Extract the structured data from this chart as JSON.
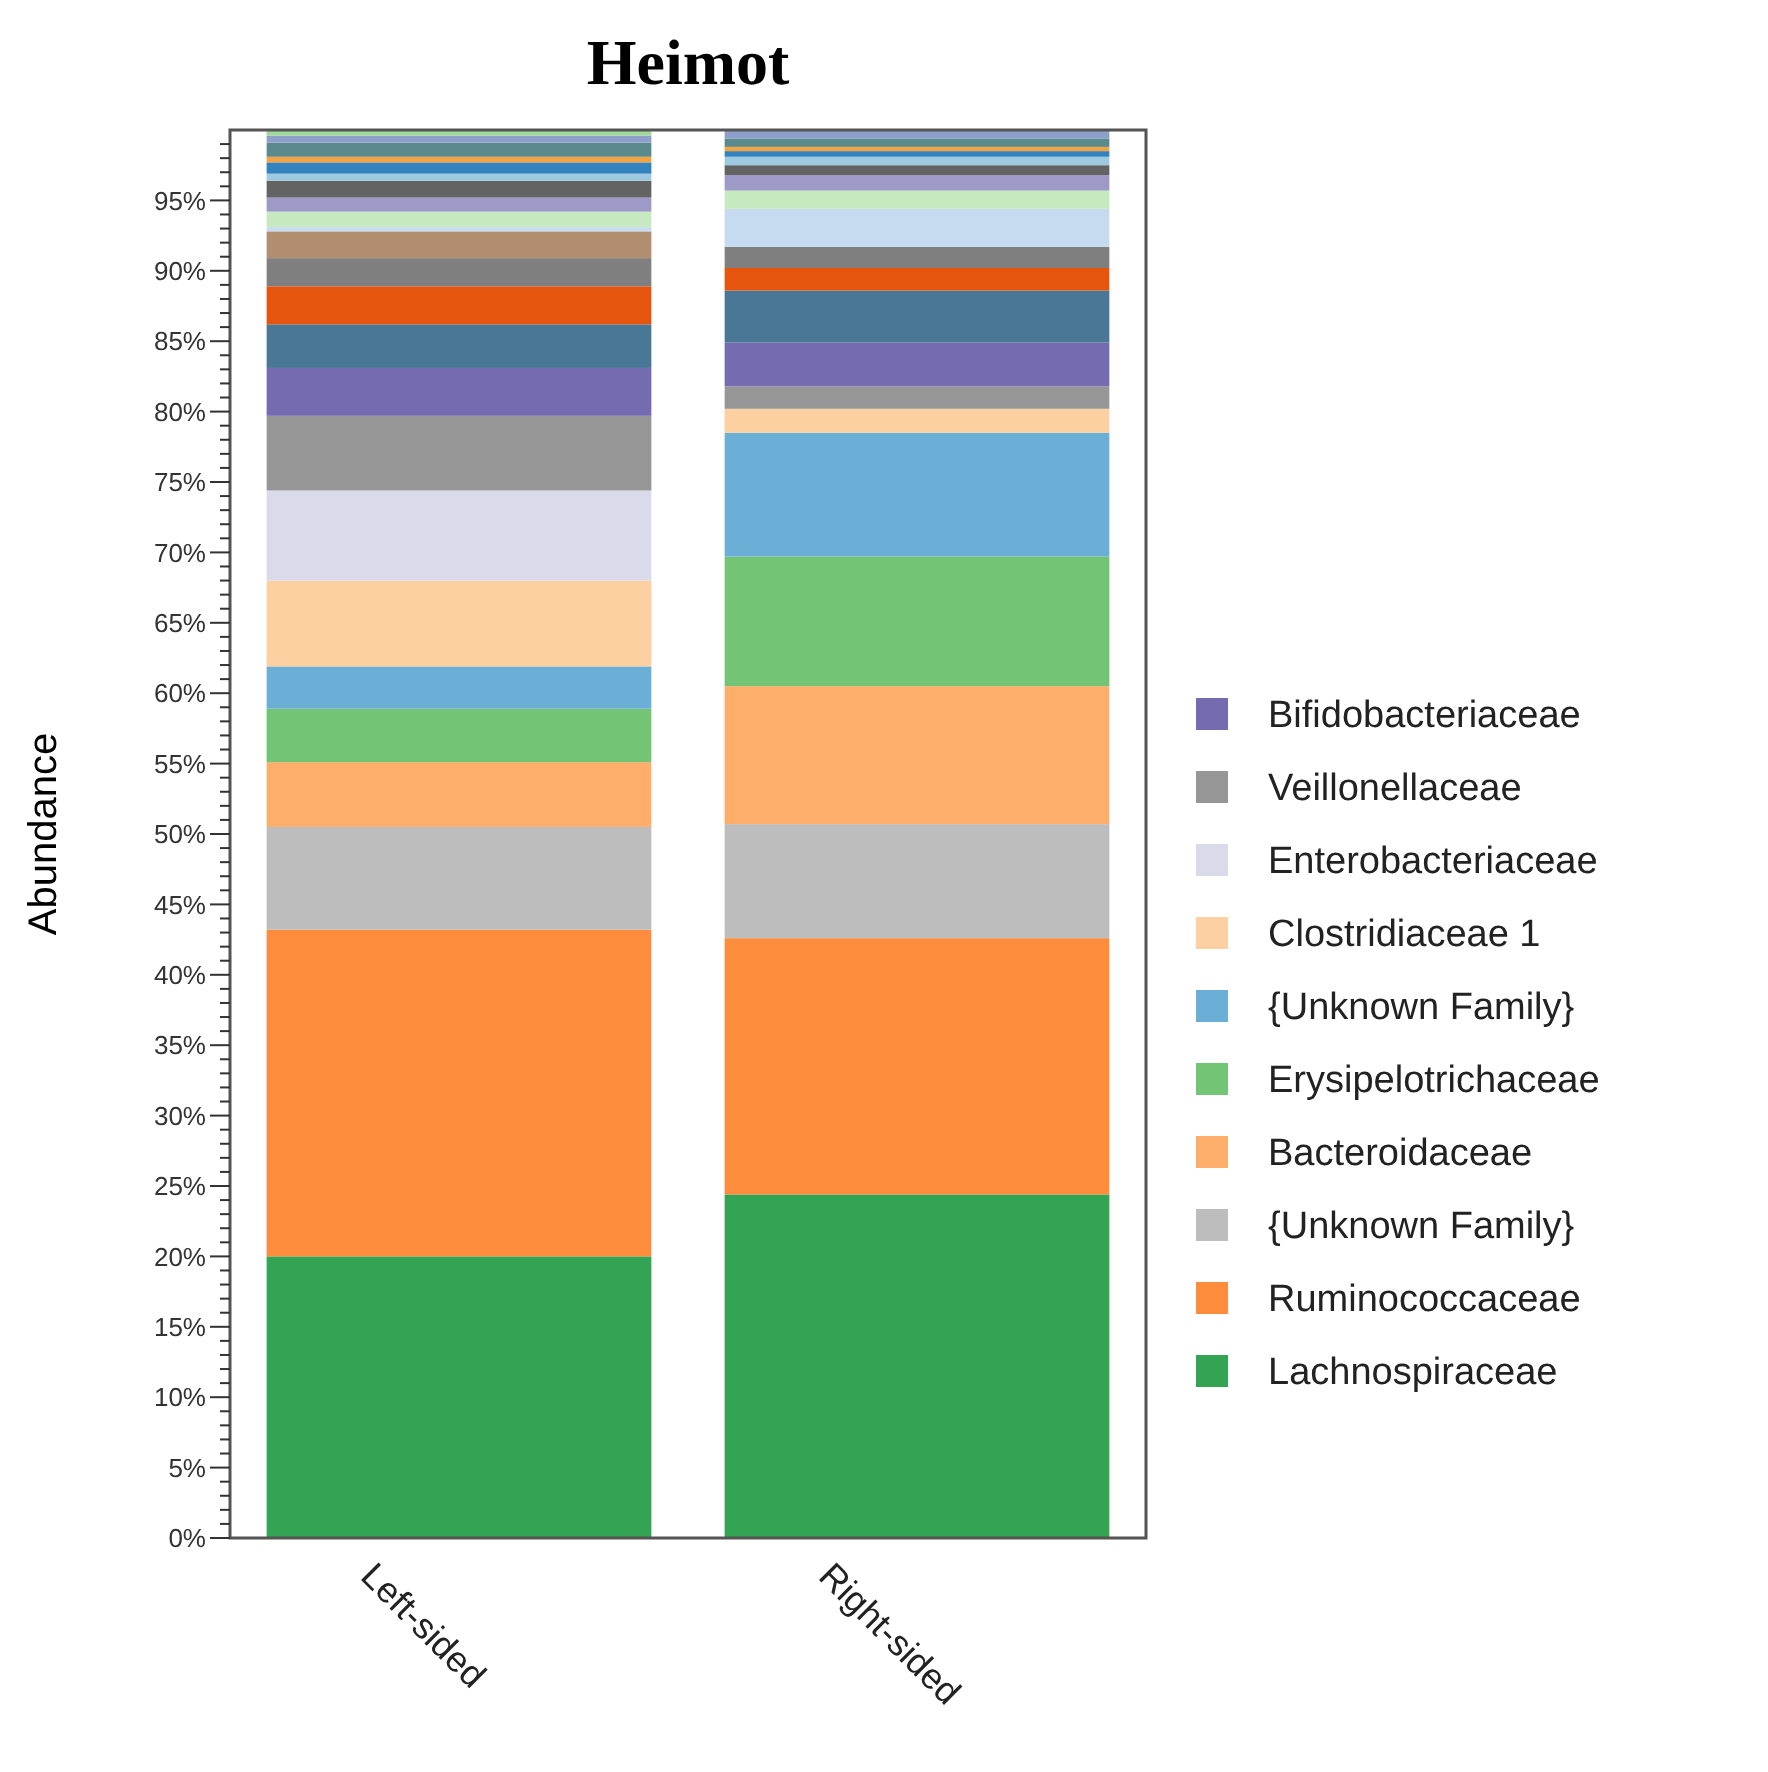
{
  "chart_data": {
    "type": "bar",
    "title": "Heimot",
    "ylabel": "Abundance",
    "categories": [
      "Left-sided",
      "Right-sided"
    ],
    "stacked": true,
    "legend": "right",
    "grid": false,
    "ylim": [
      0,
      100
    ],
    "yticks": [
      {
        "value": 0,
        "label": "0%"
      },
      {
        "value": 1,
        "label": null
      },
      {
        "value": 2,
        "label": null
      },
      {
        "value": 3,
        "label": null
      },
      {
        "value": 4,
        "label": null
      },
      {
        "value": 5,
        "label": "5%"
      },
      {
        "value": 6,
        "label": null
      },
      {
        "value": 7,
        "label": null
      },
      {
        "value": 8,
        "label": null
      },
      {
        "value": 9,
        "label": null
      },
      {
        "value": 10,
        "label": "10%"
      },
      {
        "value": 11,
        "label": null
      },
      {
        "value": 12,
        "label": null
      },
      {
        "value": 13,
        "label": null
      },
      {
        "value": 14,
        "label": null
      },
      {
        "value": 15,
        "label": "15%"
      },
      {
        "value": 16,
        "label": null
      },
      {
        "value": 17,
        "label": null
      },
      {
        "value": 18,
        "label": null
      },
      {
        "value": 19,
        "label": null
      },
      {
        "value": 20,
        "label": "20%"
      },
      {
        "value": 21,
        "label": null
      },
      {
        "value": 22,
        "label": null
      },
      {
        "value": 23,
        "label": null
      },
      {
        "value": 24,
        "label": null
      },
      {
        "value": 25,
        "label": "25%"
      },
      {
        "value": 26,
        "label": null
      },
      {
        "value": 27,
        "label": null
      },
      {
        "value": 28,
        "label": null
      },
      {
        "value": 29,
        "label": null
      },
      {
        "value": 30,
        "label": "30%"
      },
      {
        "value": 31,
        "label": null
      },
      {
        "value": 32,
        "label": null
      },
      {
        "value": 33,
        "label": null
      },
      {
        "value": 34,
        "label": null
      },
      {
        "value": 35,
        "label": "35%"
      },
      {
        "value": 36,
        "label": null
      },
      {
        "value": 37,
        "label": null
      },
      {
        "value": 38,
        "label": null
      },
      {
        "value": 39,
        "label": null
      },
      {
        "value": 40,
        "label": "40%"
      },
      {
        "value": 41,
        "label": null
      },
      {
        "value": 42,
        "label": null
      },
      {
        "value": 43,
        "label": null
      },
      {
        "value": 44,
        "label": null
      },
      {
        "value": 45,
        "label": "45%"
      },
      {
        "value": 46,
        "label": null
      },
      {
        "value": 47,
        "label": null
      },
      {
        "value": 48,
        "label": null
      },
      {
        "value": 49,
        "label": null
      },
      {
        "value": 50,
        "label": "50%"
      },
      {
        "value": 51,
        "label": null
      },
      {
        "value": 52,
        "label": null
      },
      {
        "value": 53,
        "label": null
      },
      {
        "value": 54,
        "label": null
      },
      {
        "value": 55,
        "label": "55%"
      },
      {
        "value": 56,
        "label": null
      },
      {
        "value": 57,
        "label": null
      },
      {
        "value": 58,
        "label": null
      },
      {
        "value": 59,
        "label": null
      },
      {
        "value": 60,
        "label": "60%"
      },
      {
        "value": 61,
        "label": null
      },
      {
        "value": 62,
        "label": null
      },
      {
        "value": 63,
        "label": null
      },
      {
        "value": 64,
        "label": null
      },
      {
        "value": 65,
        "label": "65%"
      },
      {
        "value": 66,
        "label": null
      },
      {
        "value": 67,
        "label": null
      },
      {
        "value": 68,
        "label": null
      },
      {
        "value": 69,
        "label": null
      },
      {
        "value": 70,
        "label": "70%"
      },
      {
        "value": 71,
        "label": null
      },
      {
        "value": 72,
        "label": null
      },
      {
        "value": 73,
        "label": null
      },
      {
        "value": 74,
        "label": null
      },
      {
        "value": 75,
        "label": "75%"
      },
      {
        "value": 76,
        "label": null
      },
      {
        "value": 77,
        "label": null
      },
      {
        "value": 78,
        "label": null
      },
      {
        "value": 79,
        "label": null
      },
      {
        "value": 80,
        "label": "80%"
      },
      {
        "value": 81,
        "label": null
      },
      {
        "value": 82,
        "label": null
      },
      {
        "value": 83,
        "label": null
      },
      {
        "value": 84,
        "label": null
      },
      {
        "value": 85,
        "label": "85%"
      },
      {
        "value": 86,
        "label": null
      },
      {
        "value": 87,
        "label": null
      },
      {
        "value": 88,
        "label": null
      },
      {
        "value": 89,
        "label": null
      },
      {
        "value": 90,
        "label": "90%"
      },
      {
        "value": 91,
        "label": null
      },
      {
        "value": 92,
        "label": null
      },
      {
        "value": 93,
        "label": null
      },
      {
        "value": 94,
        "label": null
      },
      {
        "value": 95,
        "label": "95%"
      },
      {
        "value": 96,
        "label": null
      },
      {
        "value": 97,
        "label": null
      },
      {
        "value": 98,
        "label": null
      },
      {
        "value": 99,
        "label": null
      }
    ],
    "series": [
      {
        "name": "Lachnospiraceae",
        "color": "#33a354",
        "values": [
          20.0,
          24.4
        ]
      },
      {
        "name": "Ruminococcaceae",
        "color": "#fd8d3c",
        "values": [
          23.2,
          18.2
        ]
      },
      {
        "name": "{Unknown Family}",
        "color": "#bdbdbd",
        "values": [
          7.3,
          8.1
        ]
      },
      {
        "name": "Bacteroidaceae",
        "color": "#fdae6b",
        "values": [
          4.6,
          9.8
        ]
      },
      {
        "name": "Erysipelotrichaceae",
        "color": "#74c476",
        "values": [
          3.8,
          9.2
        ]
      },
      {
        "name": "{Unknown Family}",
        "color": "#6baed6",
        "values": [
          3.0,
          8.8
        ]
      },
      {
        "name": "Clostridiaceae 1",
        "color": "#fdd0a2",
        "values": [
          6.1,
          1.7
        ]
      },
      {
        "name": "Enterobacteriaceae",
        "color": "#dadaeb",
        "values": [
          6.4,
          0
        ]
      },
      {
        "name": "Veillonellaceae",
        "color": "#969696",
        "values": [
          5.3,
          1.6
        ]
      },
      {
        "name": "Bifidobacteriaceae",
        "color": "#756bb1",
        "values": [
          3.4,
          3.1
        ]
      },
      {
        "color": "#4a7796",
        "values": [
          3.1,
          3.7
        ]
      },
      {
        "color": "#e6550d",
        "values": [
          2.7,
          1.6
        ]
      },
      {
        "color": "#7f7f7f",
        "values": [
          2.0,
          1.5
        ]
      },
      {
        "color": "#b08e6f",
        "values": [
          1.9,
          0
        ]
      },
      {
        "color": "#c6dbef",
        "values": [
          0.3,
          2.7
        ]
      },
      {
        "color": "#c7e9c0",
        "values": [
          1.1,
          1.3
        ]
      },
      {
        "color": "#9e9ac8",
        "values": [
          1.0,
          1.1
        ]
      },
      {
        "color": "#636363",
        "values": [
          1.2,
          0.7
        ]
      },
      {
        "color": "#9ecae1",
        "values": [
          0.5,
          0.6
        ]
      },
      {
        "color": "#3182bd",
        "values": [
          0.8,
          0.4
        ]
      },
      {
        "color": "#f5a340",
        "values": [
          0.4,
          0.3
        ]
      },
      {
        "color": "#5b8a8c",
        "values": [
          1.0,
          0.6
        ]
      },
      {
        "color": "#8da0cb",
        "values": [
          0.5,
          0.6
        ]
      },
      {
        "color": "#a1d99b",
        "values": [
          0.4,
          null
        ]
      }
    ]
  }
}
